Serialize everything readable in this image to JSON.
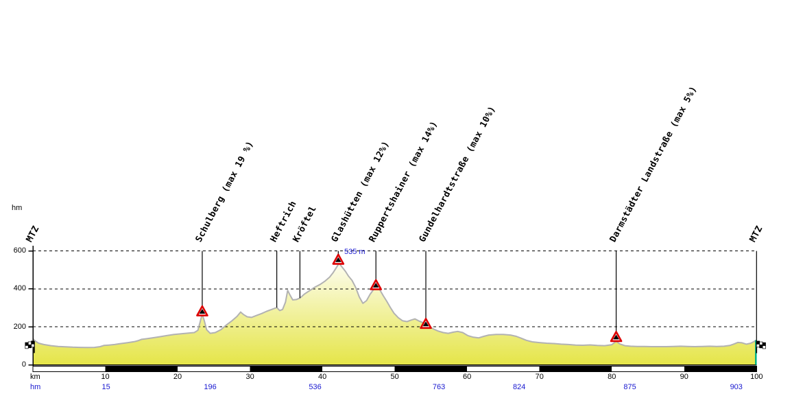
{
  "chart_data": {
    "type": "area",
    "x_axis": {
      "label": "km",
      "range": [
        0,
        100
      ],
      "ticks": [
        10,
        20,
        30,
        40,
        50,
        60,
        70,
        80,
        90,
        100
      ]
    },
    "y_axis": {
      "label": "hm",
      "range": [
        0,
        620
      ],
      "ticks": [
        0,
        200,
        400,
        600
      ],
      "dashed_gridlines": [
        200,
        400,
        600
      ]
    },
    "scale_bar": {
      "interval_km": 10,
      "pattern": [
        "white",
        "black"
      ]
    },
    "climb_row": {
      "label": "hm",
      "values": [
        {
          "text": "15",
          "km": 10.1
        },
        {
          "text": "196",
          "km": 24.5
        },
        {
          "text": "536",
          "km": 39.0
        },
        {
          "text": "763",
          "km": 56.1
        },
        {
          "text": "824",
          "km": 67.2
        },
        {
          "text": "875",
          "km": 82.5
        },
        {
          "text": "903",
          "km": 97.2
        }
      ]
    },
    "peak_annotation": {
      "text": "535 m",
      "km": 42.2,
      "hm": 535
    },
    "markers": [
      {
        "label": "MTZ",
        "km": 0,
        "type": "flag-start",
        "hm": 120
      },
      {
        "label": "Schulberg (max 19 %)",
        "km": 23.4,
        "type": "peak",
        "hm": 260
      },
      {
        "label": "Heftrich",
        "km": 33.7,
        "type": "plain",
        "hm": 302
      },
      {
        "label": "Kröftel",
        "km": 36.9,
        "type": "plain",
        "hm": 352
      },
      {
        "label": "Glashütten (max 12%)",
        "km": 42.2,
        "type": "peak",
        "hm": 532
      },
      {
        "label": "Ruppertshainer (max 14%)",
        "km": 47.4,
        "type": "peak",
        "hm": 398
      },
      {
        "label": "Gundelhardtstraße (max 10%)",
        "km": 54.3,
        "type": "peak",
        "hm": 194
      },
      {
        "label": "Darmstädter Landstraße (max 5%)",
        "km": 80.6,
        "type": "peak",
        "hm": 125
      },
      {
        "label": "MTZ",
        "km": 100,
        "type": "flag-end",
        "hm": 134
      }
    ],
    "profile_points": [
      [
        0,
        138
      ],
      [
        0.3,
        126
      ],
      [
        0.8,
        114
      ],
      [
        1.5,
        107
      ],
      [
        2.5,
        101
      ],
      [
        3.5,
        97
      ],
      [
        4.5,
        95
      ],
      [
        5.5,
        93
      ],
      [
        6.5,
        92
      ],
      [
        7.5,
        91
      ],
      [
        8.5,
        92
      ],
      [
        9.3,
        96
      ],
      [
        9.8,
        102
      ],
      [
        10.5,
        104
      ],
      [
        11.3,
        107
      ],
      [
        12,
        111
      ],
      [
        13,
        116
      ],
      [
        14,
        122
      ],
      [
        14.6,
        128
      ],
      [
        15,
        134
      ],
      [
        15.6,
        137
      ],
      [
        16.5,
        142
      ],
      [
        17.5,
        148
      ],
      [
        18.5,
        154
      ],
      [
        19.5,
        160
      ],
      [
        20.5,
        164
      ],
      [
        21.5,
        167
      ],
      [
        22.3,
        170
      ],
      [
        22.8,
        182
      ],
      [
        23.1,
        225
      ],
      [
        23.4,
        268
      ],
      [
        23.7,
        230
      ],
      [
        24,
        185
      ],
      [
        24.5,
        166
      ],
      [
        25.2,
        170
      ],
      [
        26,
        186
      ],
      [
        26.8,
        212
      ],
      [
        27.5,
        232
      ],
      [
        28.2,
        255
      ],
      [
        28.7,
        278
      ],
      [
        29.1,
        265
      ],
      [
        29.6,
        253
      ],
      [
        30.2,
        250
      ],
      [
        30.9,
        260
      ],
      [
        31.6,
        270
      ],
      [
        32.3,
        282
      ],
      [
        33,
        292
      ],
      [
        33.7,
        302
      ],
      [
        34.1,
        286
      ],
      [
        34.5,
        292
      ],
      [
        34.9,
        330
      ],
      [
        35.2,
        392
      ],
      [
        35.5,
        370
      ],
      [
        35.9,
        342
      ],
      [
        36.4,
        344
      ],
      [
        36.9,
        352
      ],
      [
        37.5,
        372
      ],
      [
        38.2,
        390
      ],
      [
        39,
        410
      ],
      [
        39.7,
        424
      ],
      [
        40.4,
        442
      ],
      [
        41,
        462
      ],
      [
        41.5,
        486
      ],
      [
        42,
        516
      ],
      [
        42.3,
        535
      ],
      [
        42.7,
        516
      ],
      [
        43.2,
        492
      ],
      [
        43.6,
        468
      ],
      [
        44.1,
        445
      ],
      [
        44.6,
        408
      ],
      [
        45.1,
        358
      ],
      [
        45.6,
        324
      ],
      [
        46.1,
        338
      ],
      [
        46.6,
        372
      ],
      [
        47.1,
        398
      ],
      [
        47.5,
        412
      ],
      [
        47.9,
        398
      ],
      [
        48.4,
        365
      ],
      [
        48.9,
        335
      ],
      [
        49.4,
        302
      ],
      [
        49.9,
        272
      ],
      [
        50.5,
        248
      ],
      [
        51.1,
        232
      ],
      [
        51.7,
        228
      ],
      [
        52.3,
        236
      ],
      [
        52.8,
        242
      ],
      [
        53.3,
        232
      ],
      [
        53.9,
        222
      ],
      [
        54.4,
        210
      ],
      [
        54.9,
        198
      ],
      [
        55.4,
        188
      ],
      [
        56,
        178
      ],
      [
        56.7,
        170
      ],
      [
        57.4,
        166
      ],
      [
        58.1,
        172
      ],
      [
        58.7,
        176
      ],
      [
        59.4,
        170
      ],
      [
        60.1,
        154
      ],
      [
        60.8,
        146
      ],
      [
        61.6,
        142
      ],
      [
        62.3,
        150
      ],
      [
        63,
        157
      ],
      [
        64,
        160
      ],
      [
        65,
        160
      ],
      [
        66,
        157
      ],
      [
        66.8,
        150
      ],
      [
        67.5,
        140
      ],
      [
        68.2,
        129
      ],
      [
        69,
        121
      ],
      [
        70,
        117
      ],
      [
        71,
        114
      ],
      [
        72,
        112
      ],
      [
        73,
        109
      ],
      [
        74,
        107
      ],
      [
        75,
        104
      ],
      [
        76,
        103
      ],
      [
        77,
        105
      ],
      [
        78,
        102
      ],
      [
        79,
        101
      ],
      [
        80,
        106
      ],
      [
        80.6,
        124
      ],
      [
        81.1,
        110
      ],
      [
        81.8,
        101
      ],
      [
        82.6,
        98
      ],
      [
        83.5,
        97
      ],
      [
        84.5,
        97
      ],
      [
        85.5,
        96
      ],
      [
        86.5,
        96
      ],
      [
        87.5,
        96
      ],
      [
        88.5,
        97
      ],
      [
        89.5,
        98
      ],
      [
        90.5,
        97
      ],
      [
        91.5,
        96
      ],
      [
        92.5,
        97
      ],
      [
        93.5,
        98
      ],
      [
        94.5,
        97
      ],
      [
        95.5,
        98
      ],
      [
        96.3,
        102
      ],
      [
        96.9,
        110
      ],
      [
        97.4,
        118
      ],
      [
        98,
        116
      ],
      [
        98.6,
        109
      ],
      [
        99.2,
        114
      ],
      [
        99.7,
        124
      ],
      [
        100,
        130
      ]
    ],
    "colors": {
      "fill_top": "#ffffff",
      "fill_bottom": "#e5e548",
      "profile_line": "#b2b2b2",
      "grid": "#000000",
      "marker_red": "#dd0000",
      "marker_inner": "#000000",
      "blue_text": "#1717cf",
      "finish_edge_green": "#00b285"
    }
  }
}
